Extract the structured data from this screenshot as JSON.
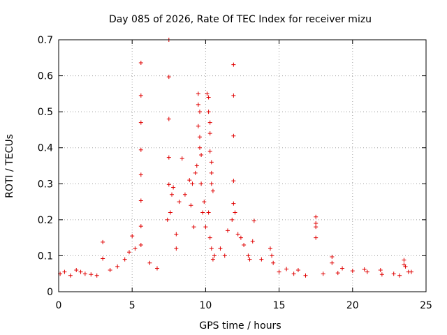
{
  "chart_data": {
    "type": "scatter",
    "title": "Day 085 of 2026, Rate Of TEC Index for receiver mizu",
    "xlabel": "GPS time / hours",
    "ylabel": "ROTI / TECUs",
    "xlim": [
      0,
      25
    ],
    "ylim": [
      0,
      0.7
    ],
    "x_ticks": [
      0,
      5,
      10,
      15,
      20,
      25
    ],
    "x_tick_labels": [
      "0",
      "5",
      "10",
      "15",
      "20",
      "25"
    ],
    "y_ticks": [
      0,
      0.1,
      0.2,
      0.3,
      0.4,
      0.5,
      0.6,
      0.7
    ],
    "y_tick_labels": [
      "0",
      "0.1",
      "0.2",
      "0.3",
      "0.4",
      "0.5",
      "0.6",
      "0.7"
    ],
    "grid": true,
    "marker": "plus",
    "color": "#e00000",
    "series": [
      {
        "name": "ROTI",
        "x": [
          5.6,
          5.6,
          5.6,
          5.6,
          5.6,
          5.6,
          5.6,
          5.6,
          7.5,
          7.5,
          7.5,
          7.5,
          7.5,
          11.9,
          11.9,
          11.9,
          11.9,
          11.9,
          13.3,
          17.5,
          17.5,
          18.6,
          23.5,
          3.0,
          3.0,
          4.8,
          5.0,
          5.2,
          7.4,
          7.6,
          7.7,
          7.8,
          8.0,
          8.2,
          8.4,
          8.6,
          8.9,
          9.0,
          9.1,
          9.2,
          9.3,
          9.4,
          9.5,
          9.5,
          9.5,
          9.6,
          9.6,
          9.6,
          9.7,
          9.7,
          9.8,
          9.9,
          10.0,
          10.1,
          10.2,
          10.2,
          10.3,
          10.3,
          10.3,
          10.4,
          10.4,
          10.4,
          10.5,
          10.2,
          10.3,
          10.4,
          10.5,
          10.6,
          11.0,
          11.5,
          11.8,
          12.0,
          12.2,
          12.4,
          12.6,
          12.9,
          13.0,
          13.2,
          14.4,
          14.5,
          14.6,
          15.5,
          16.3,
          17.5,
          17.5,
          18.6,
          19.3,
          20.8,
          21.9,
          23.5,
          23.6,
          23.8,
          0.1,
          0.4,
          0.8,
          1.2,
          1.5,
          1.8,
          2.2,
          2.6,
          3.5,
          4.0,
          4.5,
          6.2,
          6.7,
          8.0,
          11.3,
          13.8,
          15.0,
          16.0,
          16.8,
          18.0,
          19.0,
          20.0,
          21.0,
          22.0,
          22.8,
          23.2,
          24.0
        ],
        "y": [
          0.636,
          0.545,
          0.47,
          0.394,
          0.325,
          0.253,
          0.182,
          0.13,
          0.7,
          0.597,
          0.48,
          0.373,
          0.298,
          0.631,
          0.545,
          0.433,
          0.308,
          0.245,
          0.197,
          0.208,
          0.19,
          0.097,
          0.088,
          0.138,
          0.092,
          0.11,
          0.155,
          0.12,
          0.2,
          0.22,
          0.27,
          0.29,
          0.16,
          0.25,
          0.37,
          0.27,
          0.31,
          0.24,
          0.3,
          0.18,
          0.33,
          0.35,
          0.55,
          0.52,
          0.46,
          0.5,
          0.43,
          0.4,
          0.38,
          0.3,
          0.22,
          0.25,
          0.18,
          0.55,
          0.54,
          0.5,
          0.47,
          0.44,
          0.39,
          0.36,
          0.33,
          0.3,
          0.28,
          0.22,
          0.15,
          0.12,
          0.09,
          0.1,
          0.12,
          0.17,
          0.2,
          0.22,
          0.16,
          0.15,
          0.13,
          0.1,
          0.09,
          0.14,
          0.12,
          0.1,
          0.08,
          0.063,
          0.06,
          0.18,
          0.15,
          0.08,
          0.065,
          0.062,
          0.06,
          0.075,
          0.07,
          0.055,
          0.05,
          0.055,
          0.045,
          0.06,
          0.055,
          0.05,
          0.048,
          0.045,
          0.06,
          0.07,
          0.09,
          0.08,
          0.065,
          0.12,
          0.1,
          0.09,
          0.055,
          0.05,
          0.045,
          0.05,
          0.052,
          0.058,
          0.055,
          0.048,
          0.05,
          0.045,
          0.055
        ]
      }
    ]
  }
}
